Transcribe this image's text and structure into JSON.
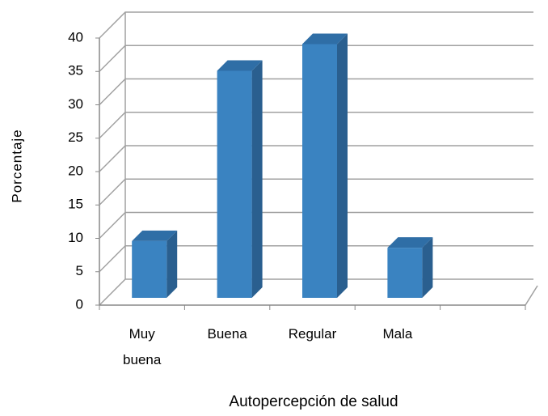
{
  "chart_data": {
    "type": "bar3d",
    "x_label": "Autopercepción de salud",
    "y_label": "Porcentaje",
    "categories": [
      "Muy buena",
      "Buena",
      "Regular",
      "Mala",
      null
    ],
    "values": [
      8.5,
      34,
      38,
      7.5,
      null
    ],
    "color": "#3a83c1",
    "ylim": [
      0,
      40
    ],
    "yticks": [
      0,
      5,
      10,
      15,
      20,
      25,
      30,
      35,
      40
    ],
    "grid": true
  }
}
